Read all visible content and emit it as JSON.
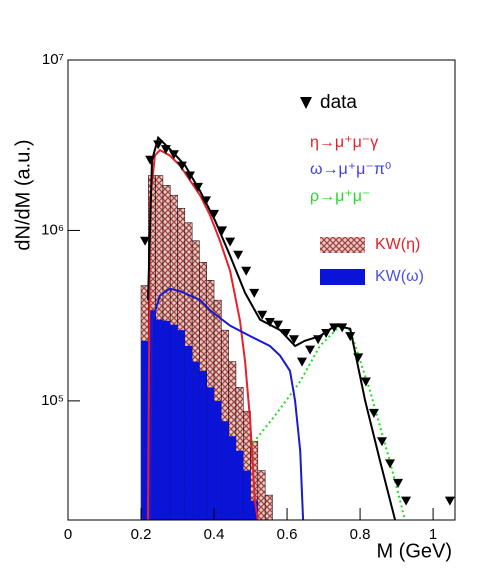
{
  "chart_data": {
    "type": "line",
    "x_label": "M (GeV)",
    "y_label": "dN/dM (a.u.)",
    "xlim": [
      0,
      1.06
    ],
    "ylim": [
      20000,
      10000000
    ],
    "ylog": true,
    "xticks": [
      0,
      0.2,
      0.4,
      0.6,
      0.8,
      1
    ],
    "yticks": [
      {
        "value": 100000,
        "label": "10⁵"
      },
      {
        "value": 1000000,
        "label": "10⁶"
      },
      {
        "value": 10000000,
        "label": "10⁷"
      }
    ],
    "series": [
      {
        "name": "data",
        "type": "scatter",
        "color": "#000000",
        "x": [
          0.211,
          0.225,
          0.247,
          0.268,
          0.29,
          0.312,
          0.334,
          0.356,
          0.378,
          0.4,
          0.422,
          0.444,
          0.466,
          0.488,
          0.51,
          0.532,
          0.553,
          0.575,
          0.597,
          0.619,
          0.641,
          0.663,
          0.685,
          0.707,
          0.729,
          0.751,
          0.773,
          0.795,
          0.816,
          0.838,
          0.86,
          0.882,
          0.904,
          0.926,
          1.046
        ],
        "values": [
          870000,
          2600000,
          3200000,
          3000000,
          2800000,
          2400000,
          2100000,
          1800000,
          1500000,
          1250000,
          1000000,
          860000,
          720000,
          580000,
          430000,
          320000,
          290000,
          280000,
          250000,
          230000,
          170000,
          200000,
          230000,
          250000,
          270000,
          270000,
          240000,
          180000,
          130000,
          85000,
          58000,
          43000,
          33000,
          26000,
          26000
        ]
      },
      {
        "name": "η→μ⁺μ⁻γ",
        "type": "line",
        "color": "#e8202a",
        "x": [
          0.219,
          0.225,
          0.238,
          0.252,
          0.279,
          0.307,
          0.334,
          0.362,
          0.389,
          0.416,
          0.444,
          0.471,
          0.485,
          0.499,
          0.512,
          0.52
        ],
        "values": [
          20000,
          1500000,
          2750000,
          2960000,
          2750000,
          2400000,
          1970000,
          1600000,
          1230000,
          870000,
          580000,
          295000,
          170000,
          76000,
          26000,
          20000
        ]
      },
      {
        "name": "ω→μ⁺μ⁻π⁰",
        "type": "line",
        "color": "#1a1ad0",
        "x": [
          0.225,
          0.23,
          0.252,
          0.279,
          0.307,
          0.334,
          0.362,
          0.389,
          0.444,
          0.499,
          0.553,
          0.581,
          0.608,
          0.622,
          0.636,
          0.644
        ],
        "values": [
          20000,
          295000,
          415000,
          455000,
          440000,
          415000,
          390000,
          340000,
          276000,
          240000,
          210000,
          184000,
          150000,
          100000,
          51000,
          20000
        ]
      },
      {
        "name": "ρ→μ⁺μ⁻",
        "type": "dotted",
        "color": "#22dd22",
        "x": [
          0.499,
          0.567,
          0.636,
          0.69,
          0.745,
          0.773,
          0.827,
          0.882,
          0.923
        ],
        "values": [
          54000,
          82000,
          130000,
          210000,
          276000,
          260000,
          115000,
          44000,
          20000
        ]
      },
      {
        "type": "line",
        "color": "#000000",
        "x": [
          0.219,
          0.23,
          0.247,
          0.279,
          0.321,
          0.362,
          0.403,
          0.444,
          0.485,
          0.526,
          0.581,
          0.622,
          0.649,
          0.69,
          0.732,
          0.773,
          0.814,
          0.855,
          0.896
        ],
        "values": [
          390000,
          2580000,
          3500000,
          3000000,
          2400000,
          1700000,
          1140000,
          710000,
          430000,
          300000,
          260000,
          210000,
          225000,
          240000,
          276000,
          265000,
          100000,
          44000,
          20000
        ]
      },
      {
        "name": "KW(η)",
        "type": "hist",
        "color": "#b86060",
        "bins": [
          0.2,
          0.22,
          0.24,
          0.26,
          0.28,
          0.3,
          0.32,
          0.34,
          0.36,
          0.38,
          0.4,
          0.42,
          0.44,
          0.46,
          0.48,
          0.5,
          0.52,
          0.54,
          0.56,
          0.58
        ],
        "values": [
          475000,
          2100000,
          2100000,
          1840000,
          1610000,
          1350000,
          1110000,
          870000,
          650000,
          510000,
          390000,
          260000,
          170000,
          120000,
          87000,
          58000,
          39000,
          28000,
          20000
        ]
      },
      {
        "name": "KW(ω)",
        "type": "hist",
        "color": "#0a14d8",
        "bins": [
          0.2,
          0.22,
          0.24,
          0.26,
          0.28,
          0.3,
          0.32,
          0.34,
          0.36,
          0.38,
          0.4,
          0.42,
          0.44,
          0.46,
          0.48,
          0.5,
          0.52,
          0.54
        ],
        "values": [
          225000,
          340000,
          300000,
          295000,
          280000,
          260000,
          210000,
          170000,
          150000,
          120000,
          100000,
          76000,
          62000,
          51000,
          39000,
          26000,
          20000
        ]
      }
    ]
  }
}
